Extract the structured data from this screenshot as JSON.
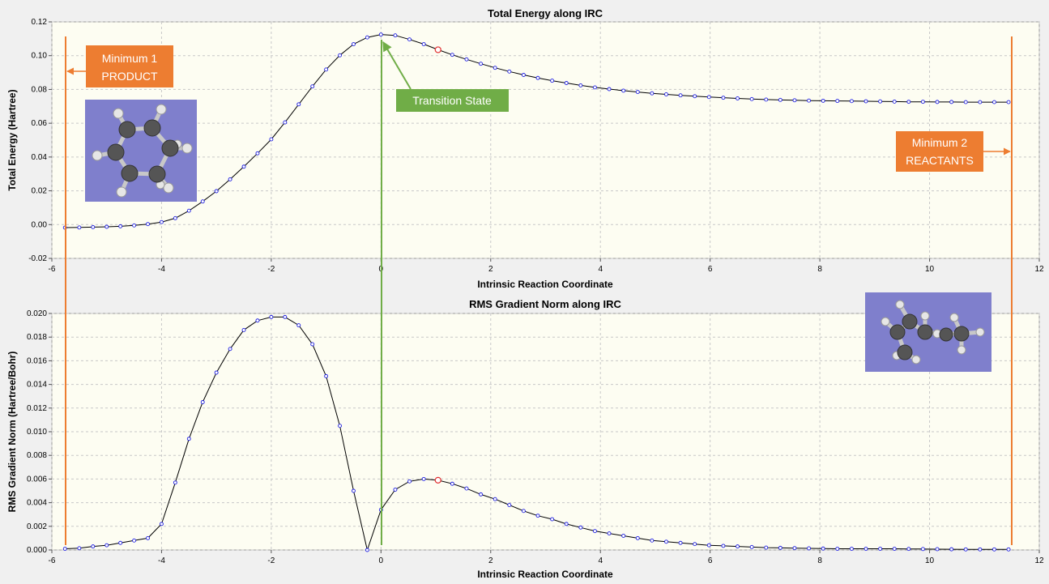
{
  "colors": {
    "plot_bg": "#fdfdf2",
    "panel_bg": "#f0f0f0",
    "curve": "#000000",
    "marker": "#2020e0",
    "highlight": "#e03030",
    "callout_orange": "#ed7d31",
    "callout_green": "#70ad47",
    "molecule_bg": "#7f7fcc"
  },
  "annotations": {
    "min1_line1": "Minimum 1",
    "min1_line2": "PRODUCT",
    "min2_line1": "Minimum  2",
    "min2_line2": "REACTANTS",
    "ts": "Transition State"
  },
  "images": {
    "product_molecule": "ring molecule (product) ball-and-stick",
    "reactant_molecule": "open-chain molecule (reactants) ball-and-stick"
  },
  "chart_data": [
    {
      "type": "line",
      "title": "Total Energy along IRC",
      "xlabel": "Intrinsic Reaction Coordinate",
      "ylabel": "Total Energy (Hartree)",
      "xlim": [
        -6,
        12
      ],
      "ylim": [
        -0.02,
        0.12
      ],
      "xticks": [
        "-6",
        "-4",
        "-2",
        "0",
        "2",
        "4",
        "6",
        "8",
        "10",
        "12"
      ],
      "yticks": [
        "-0.02",
        "0.00",
        "0.02",
        "0.04",
        "0.06",
        "0.08",
        "0.10",
        "0.12"
      ],
      "grid": true,
      "highlight_x": 1.04,
      "series": [
        {
          "x": [
            -5.76,
            -5.5,
            -5.25,
            -5.0,
            -4.75,
            -4.5,
            -4.25,
            -4.0,
            -3.75,
            -3.5,
            -3.25,
            -3.0,
            -2.75,
            -2.5,
            -2.25,
            -2.0,
            -1.75,
            -1.5,
            -1.25,
            -1.0,
            -0.75,
            -0.5,
            -0.25,
            0.0,
            0.26,
            0.52,
            0.78,
            1.04,
            1.3,
            1.56,
            1.82,
            2.08,
            2.34,
            2.6,
            2.86,
            3.12,
            3.38,
            3.64,
            3.9,
            4.16,
            4.42,
            4.68,
            4.94,
            5.2,
            5.46,
            5.72,
            5.98,
            6.24,
            6.5,
            6.76,
            7.02,
            7.28,
            7.54,
            7.8,
            8.06,
            8.32,
            8.58,
            8.84,
            9.1,
            9.36,
            9.62,
            9.88,
            10.14,
            10.4,
            10.66,
            10.92,
            11.18,
            11.44
          ],
          "y": [
            -0.0018,
            -0.0017,
            -0.0015,
            -0.0013,
            -0.001,
            -0.0005,
            0.0003,
            0.0015,
            0.0038,
            0.0082,
            0.0137,
            0.0198,
            0.0268,
            0.0343,
            0.0422,
            0.0505,
            0.0605,
            0.0712,
            0.0818,
            0.0918,
            0.1002,
            0.1068,
            0.1108,
            0.1125,
            0.112,
            0.1096,
            0.1068,
            0.1035,
            0.1005,
            0.0978,
            0.0952,
            0.0928,
            0.0906,
            0.0886,
            0.0868,
            0.0852,
            0.0838,
            0.0824,
            0.0812,
            0.0802,
            0.0793,
            0.0785,
            0.0777,
            0.0771,
            0.0765,
            0.076,
            0.0755,
            0.0751,
            0.0747,
            0.0743,
            0.074,
            0.0738,
            0.0736,
            0.0734,
            0.0733,
            0.0732,
            0.0731,
            0.073,
            0.0729,
            0.0728,
            0.0727,
            0.0727,
            0.0726,
            0.0726,
            0.0725,
            0.0725,
            0.0725,
            0.0725
          ]
        }
      ]
    },
    {
      "type": "line",
      "title": "RMS Gradient Norm along IRC",
      "xlabel": "Intrinsic Reaction Coordinate",
      "ylabel": "RMS Gradient Norm (Hartree/Bohr)",
      "xlim": [
        -6,
        12
      ],
      "ylim": [
        0,
        0.02
      ],
      "xticks": [
        "-6",
        "-4",
        "-2",
        "0",
        "2",
        "4",
        "6",
        "8",
        "10",
        "12"
      ],
      "yticks": [
        "0.000",
        "0.002",
        "0.004",
        "0.006",
        "0.008",
        "0.010",
        "0.012",
        "0.014",
        "0.016",
        "0.018",
        "0.020"
      ],
      "grid": true,
      "highlight_x": 1.04,
      "series": [
        {
          "x": [
            -5.76,
            -5.5,
            -5.25,
            -5.0,
            -4.75,
            -4.5,
            -4.25,
            -4.0,
            -3.75,
            -3.5,
            -3.25,
            -3.0,
            -2.75,
            -2.5,
            -2.25,
            -2.0,
            -1.75,
            -1.5,
            -1.25,
            -1.0,
            -0.75,
            -0.5,
            -0.25,
            0.0,
            0.26,
            0.52,
            0.78,
            1.04,
            1.3,
            1.56,
            1.82,
            2.08,
            2.34,
            2.6,
            2.86,
            3.12,
            3.38,
            3.64,
            3.9,
            4.16,
            4.42,
            4.68,
            4.94,
            5.2,
            5.46,
            5.72,
            5.98,
            6.24,
            6.5,
            6.76,
            7.02,
            7.28,
            7.54,
            7.8,
            8.06,
            8.32,
            8.58,
            8.84,
            9.1,
            9.36,
            9.62,
            9.88,
            10.14,
            10.4,
            10.66,
            10.92,
            11.18,
            11.44
          ],
          "y": [
            0.0001,
            0.00015,
            0.0003,
            0.0004,
            0.0006,
            0.0008,
            0.001,
            0.0022,
            0.0057,
            0.0094,
            0.0125,
            0.015,
            0.017,
            0.0186,
            0.0194,
            0.0197,
            0.0197,
            0.019,
            0.0174,
            0.0147,
            0.0105,
            0.005,
            0.0,
            0.0034,
            0.0051,
            0.0058,
            0.006,
            0.0059,
            0.0056,
            0.0052,
            0.0047,
            0.0043,
            0.0038,
            0.0033,
            0.0029,
            0.0026,
            0.0022,
            0.0019,
            0.0016,
            0.0014,
            0.0012,
            0.001,
            0.0008,
            0.0007,
            0.0006,
            0.0005,
            0.0004,
            0.00035,
            0.0003,
            0.00025,
            0.0002,
            0.00018,
            0.00016,
            0.00014,
            0.00012,
            0.0001,
            0.0001,
            0.0001,
            0.0001,
            0.0001,
            9e-05,
            8e-05,
            7e-05,
            6e-05,
            5e-05,
            5e-05,
            5e-05,
            5e-05
          ]
        }
      ]
    }
  ]
}
